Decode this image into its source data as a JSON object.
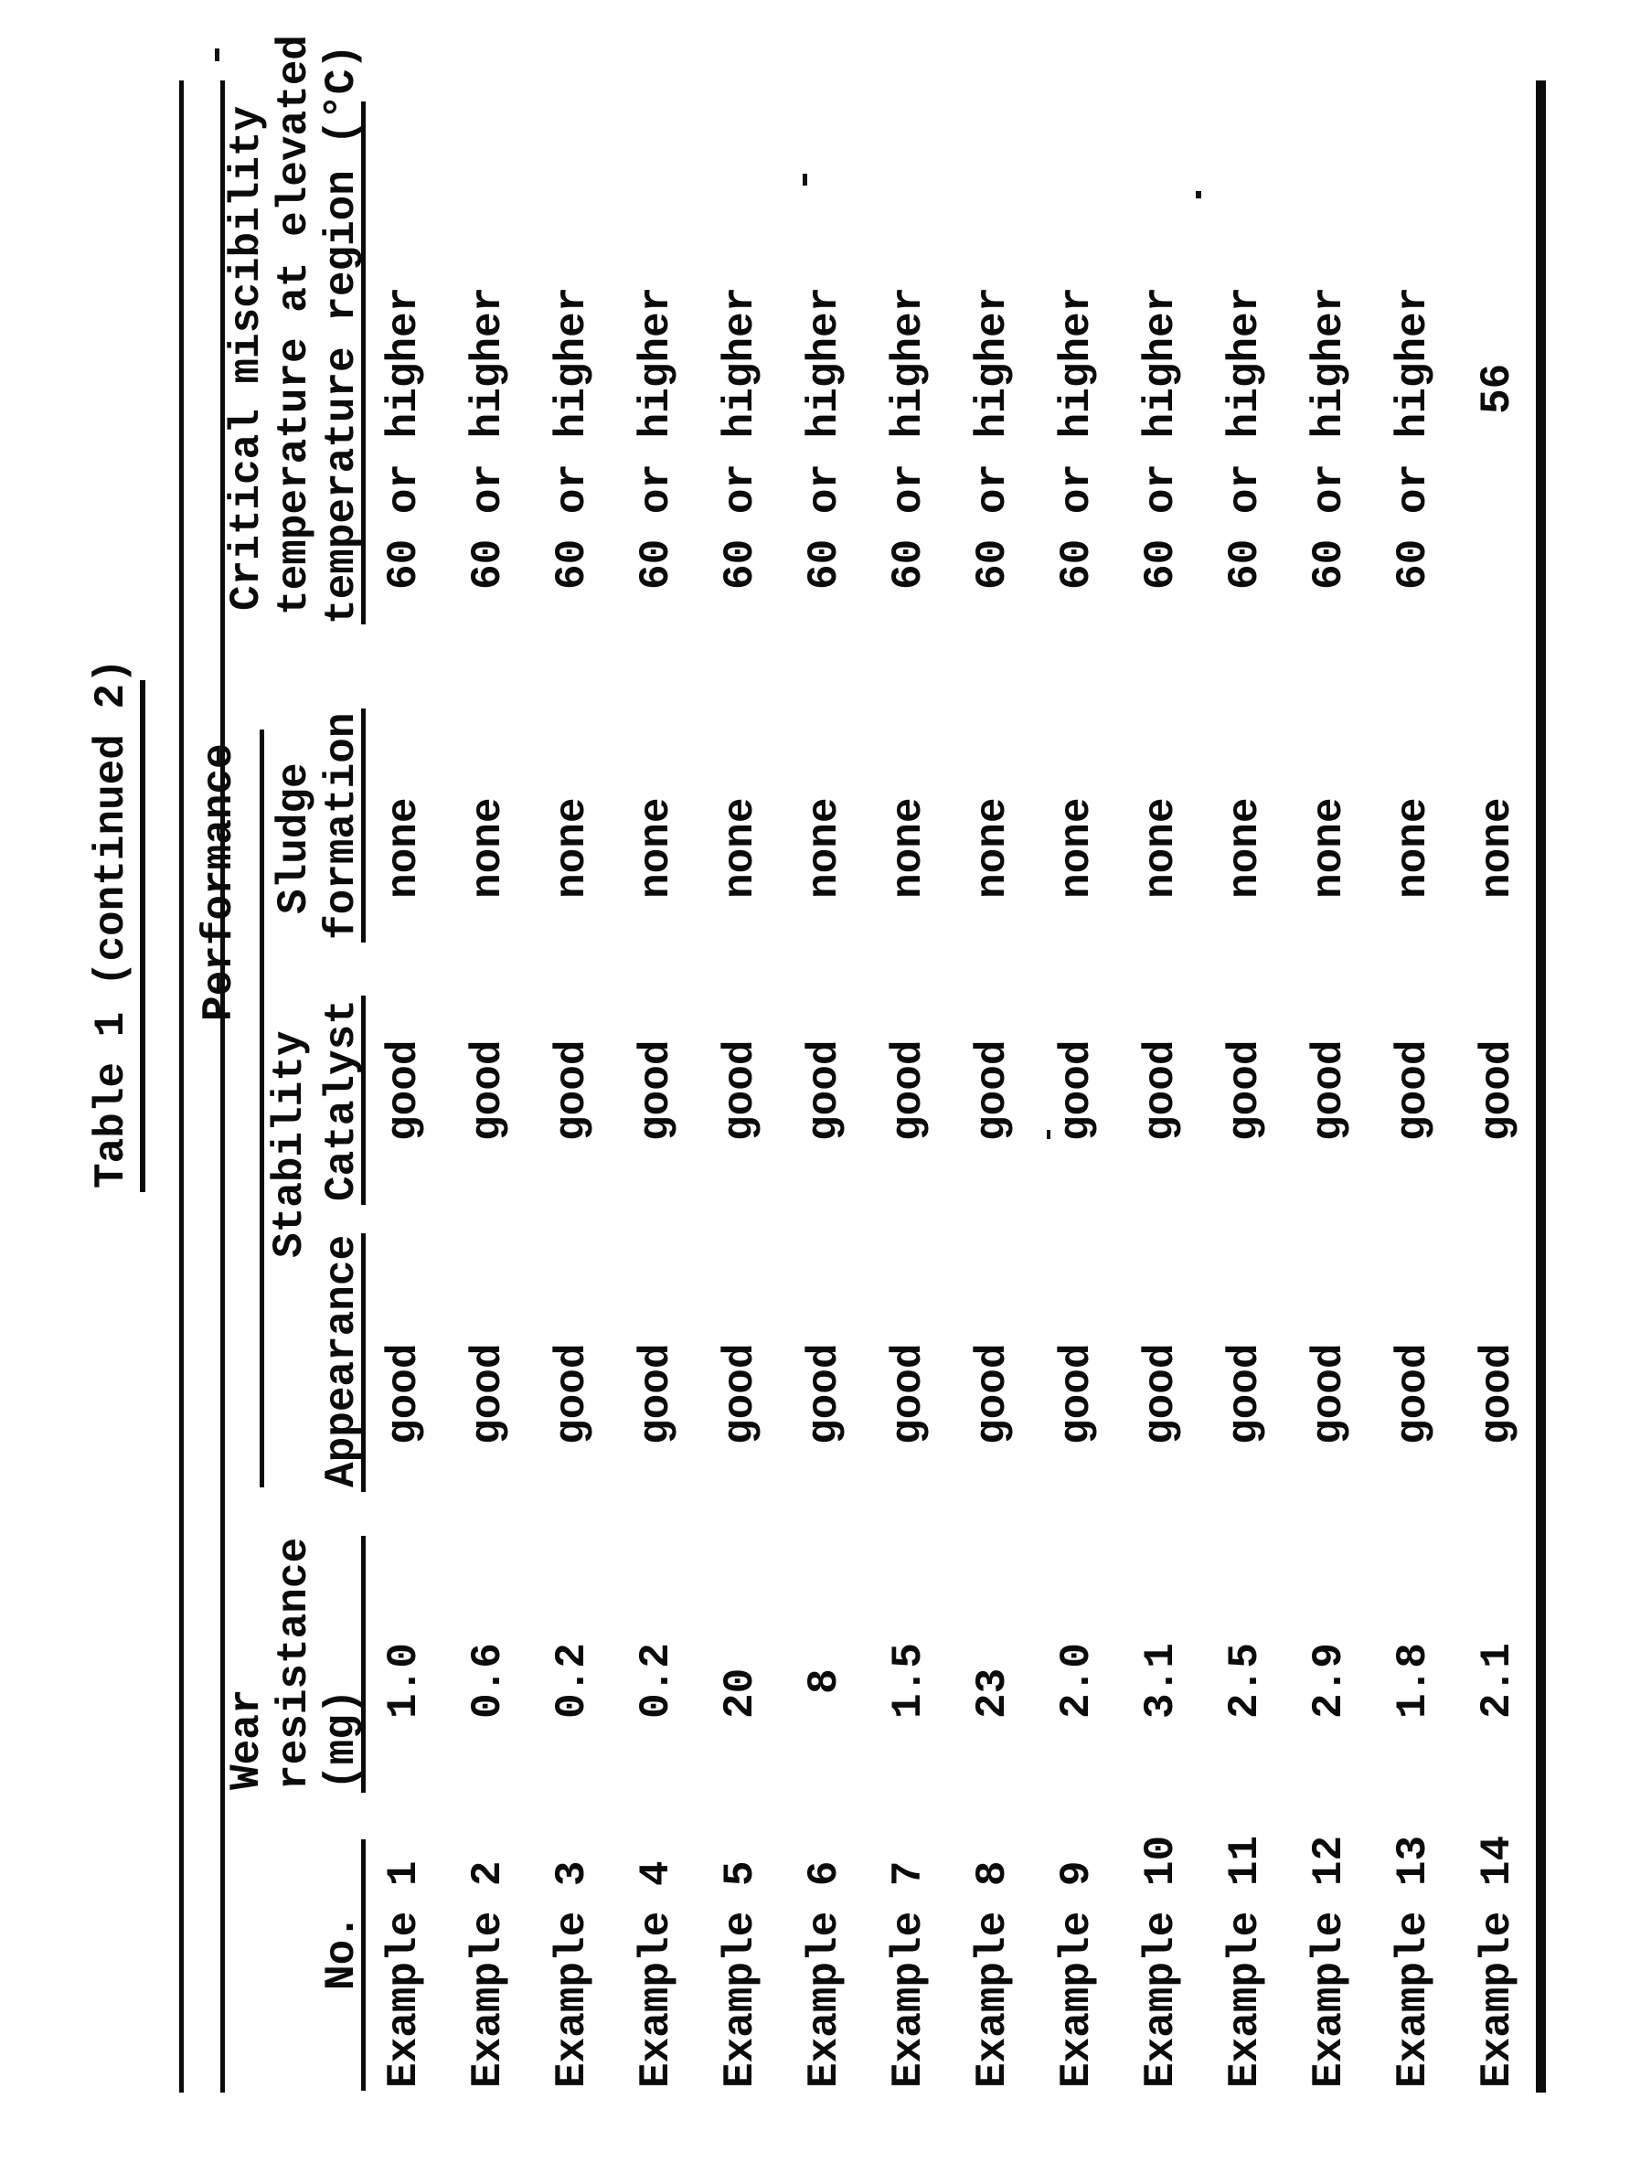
{
  "title": "Table 1 (continued 2)",
  "header": {
    "no_label": "No.",
    "wear_line1": "Wear",
    "wear_line2": "resistance",
    "wear_line3": "(mg)",
    "performance_label": "Performance",
    "stability_label": "Stability",
    "appearance_label": "Appearance",
    "catalyst_label": "Catalyst",
    "sludge_line1": "Sludge",
    "sludge_line2": "formation",
    "critical_line1": "Critical miscibility",
    "critical_line2": "temperature at elevated",
    "critical_line3": "temperature region (°C)"
  },
  "rows": [
    {
      "no": "Example 1",
      "wear": "1.0",
      "appearance": "good",
      "catalyst": "good",
      "sludge": "none",
      "critical": "60 or higher"
    },
    {
      "no": "Example 2",
      "wear": "0.6",
      "appearance": "good",
      "catalyst": "good",
      "sludge": "none",
      "critical": "60 or higher"
    },
    {
      "no": "Example 3",
      "wear": "0.2",
      "appearance": "good",
      "catalyst": "good",
      "sludge": "none",
      "critical": "60 or higher"
    },
    {
      "no": "Example 4",
      "wear": "0.2",
      "appearance": "good",
      "catalyst": "good",
      "sludge": "none",
      "critical": "60 or higher"
    },
    {
      "no": "Example 5",
      "wear": "20",
      "appearance": "good",
      "catalyst": "good",
      "sludge": "none",
      "critical": "60 or higher"
    },
    {
      "no": "Example 6",
      "wear": "8",
      "appearance": "good",
      "catalyst": "good",
      "sludge": "none",
      "critical": "60 or higher"
    },
    {
      "no": "Example 7",
      "wear": "1.5",
      "appearance": "good",
      "catalyst": "good",
      "sludge": "none",
      "critical": "60 or higher"
    },
    {
      "no": "Example 8",
      "wear": "23",
      "appearance": "good",
      "catalyst": "good",
      "sludge": "none",
      "critical": "60 or higher"
    },
    {
      "no": "Example 9",
      "wear": "2.0",
      "appearance": "good",
      "catalyst": "good",
      "sludge": "none",
      "critical": "60 or higher"
    },
    {
      "no": "Example 10",
      "wear": "3.1",
      "appearance": "good",
      "catalyst": "good",
      "sludge": "none",
      "critical": "60 or higher"
    },
    {
      "no": "Example 11",
      "wear": "2.5",
      "appearance": "good",
      "catalyst": "good",
      "sludge": "none",
      "critical": "60 or higher"
    },
    {
      "no": "Example 12",
      "wear": "2.9",
      "appearance": "good",
      "catalyst": "good",
      "sludge": "none",
      "critical": "60 or higher"
    },
    {
      "no": "Example 13",
      "wear": "1.8",
      "appearance": "good",
      "catalyst": "good",
      "sludge": "none",
      "critical": "60 or higher"
    },
    {
      "no": "Example 14",
      "wear": "2.1",
      "appearance": "good",
      "catalyst": "good",
      "sludge": "none",
      "critical": "56"
    }
  ]
}
